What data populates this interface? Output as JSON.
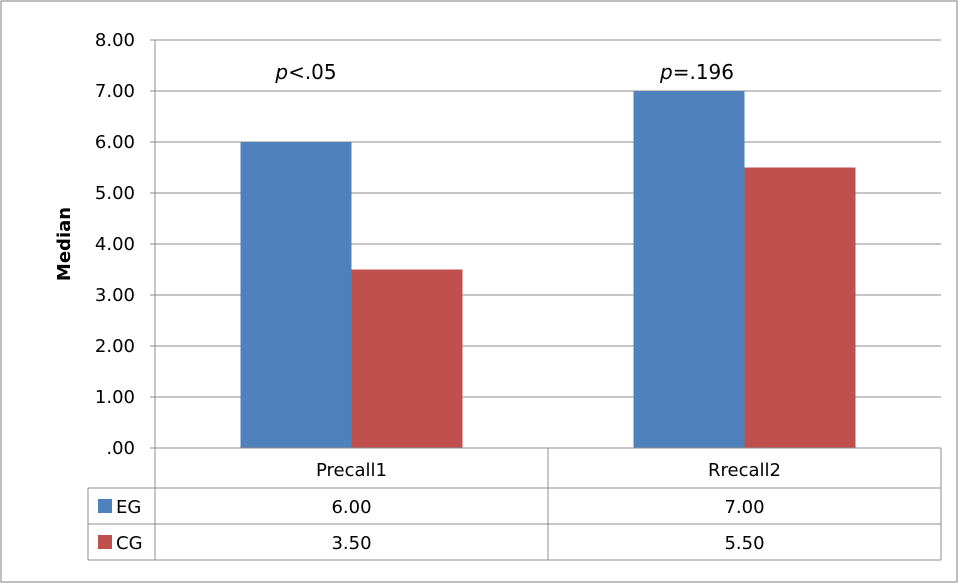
{
  "chart_data": {
    "type": "bar",
    "categories": [
      "Precall1",
      "Rrecall2"
    ],
    "series": [
      {
        "name": "EG",
        "values": [
          6.0,
          7.0
        ],
        "color": "#4F81BD",
        "labels": [
          "6.00",
          "7.00"
        ]
      },
      {
        "name": "CG",
        "values": [
          3.5,
          5.5
        ],
        "color": "#C0504D",
        "labels": [
          "3.50",
          "5.50"
        ]
      }
    ],
    "ylabel": "Median",
    "ylim": [
      0,
      8
    ],
    "yticks": [
      ".00",
      "1.00",
      "2.00",
      "3.00",
      "4.00",
      "5.00",
      "6.00",
      "7.00",
      "8.00"
    ],
    "grid": true,
    "data_table": true,
    "annotations": [
      {
        "italic": "p",
        "rest": "<.05",
        "category": "Precall1"
      },
      {
        "italic": "p",
        "rest": "=.196",
        "category": "Rrecall2"
      }
    ]
  }
}
